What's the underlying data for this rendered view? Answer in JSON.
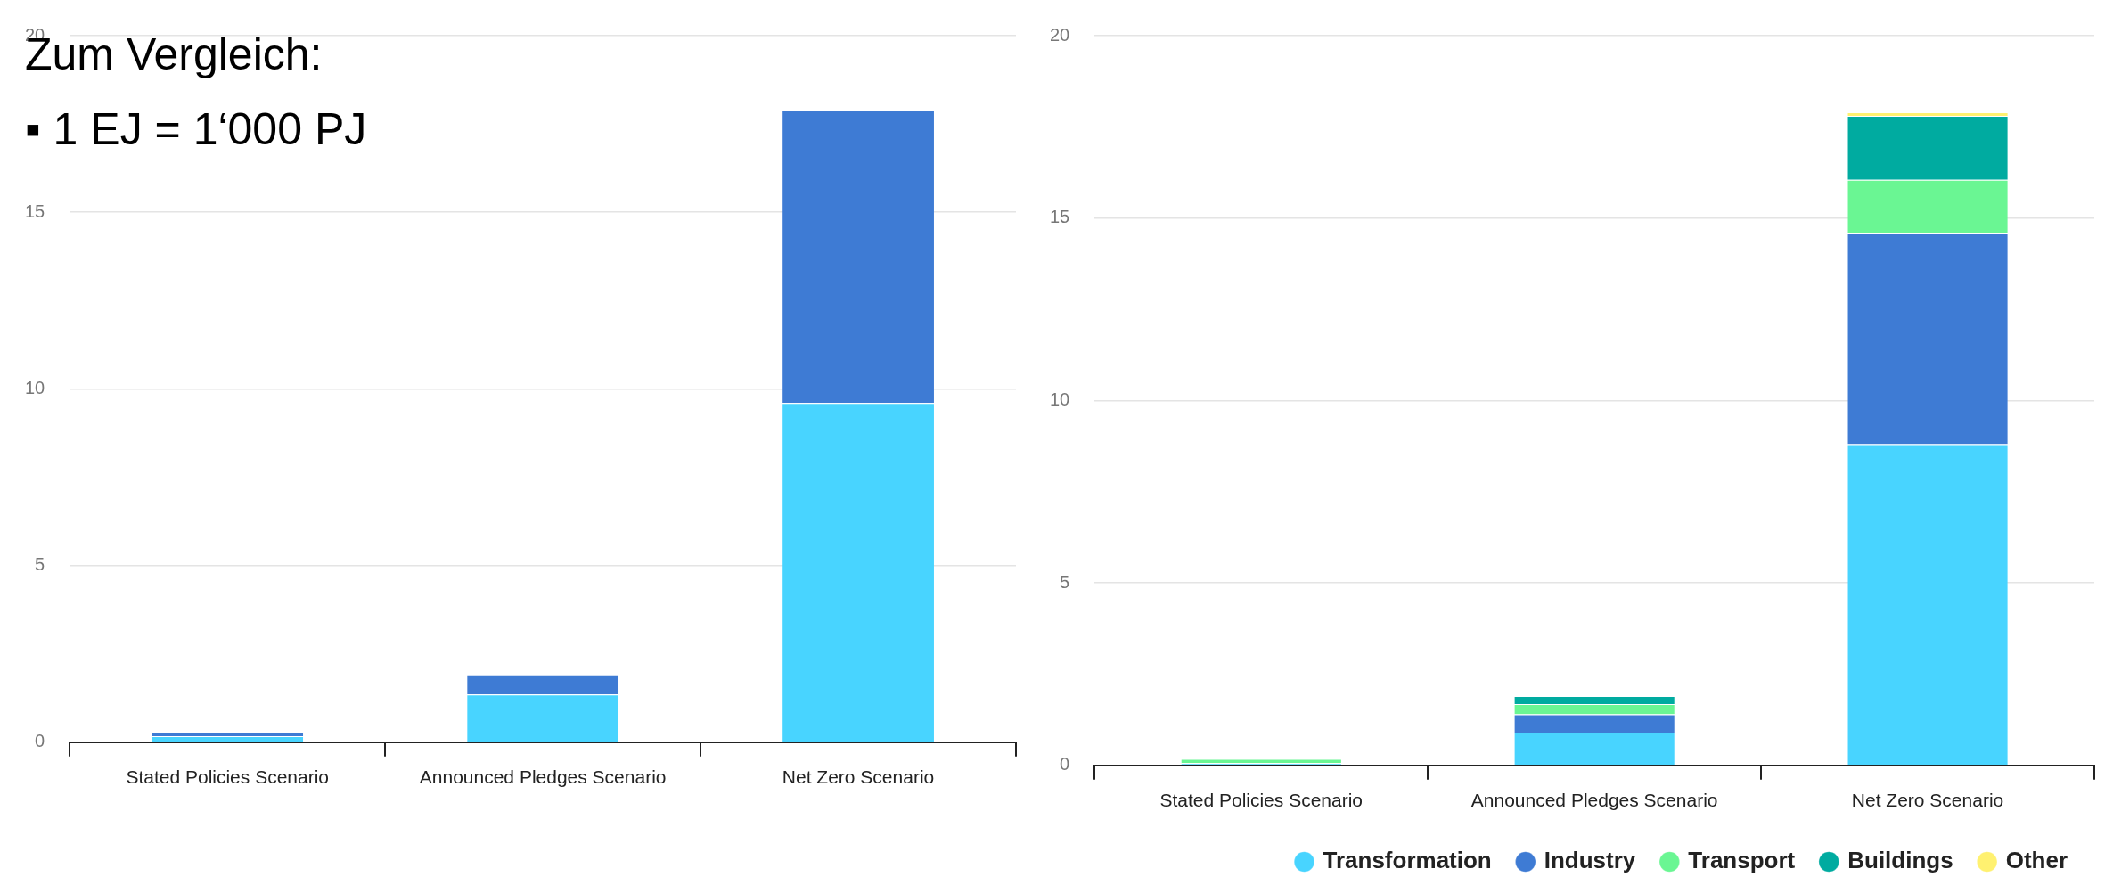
{
  "chart_data": [
    {
      "type": "bar",
      "stacked": true,
      "categories": [
        "Stated Policies Scenario",
        "Announced Pledges Scenario",
        "Net Zero Scenario"
      ],
      "series": [
        {
          "color": "#48d4ff",
          "values": [
            0.17,
            1.35,
            9.6
          ]
        },
        {
          "color": "#3e7bd4",
          "values": [
            0.1,
            0.57,
            8.3
          ]
        }
      ],
      "ylim": [
        0,
        20
      ],
      "yticks": [
        0,
        5,
        10,
        15,
        20
      ],
      "grid": "y",
      "legend": false,
      "annotations": [
        "Zum Vergleich:",
        "▪  1 EJ = 1‘000 PJ"
      ]
    },
    {
      "type": "bar",
      "stacked": true,
      "categories": [
        "Stated Policies Scenario",
        "Announced Pledges Scenario",
        "Net Zero Scenario"
      ],
      "series": [
        {
          "name": "Transformation",
          "color": "#48d4ff",
          "values": [
            0.06,
            0.9,
            8.8
          ]
        },
        {
          "name": "Industry",
          "color": "#3e7bd4",
          "values": [
            0,
            0.5,
            5.8
          ]
        },
        {
          "name": "Transport",
          "color": "#6af693",
          "values": [
            0.12,
            0.28,
            1.45
          ]
        },
        {
          "name": "Buildings",
          "color": "#00aba0",
          "values": [
            0,
            0.22,
            1.75
          ]
        },
        {
          "name": "Other",
          "color": "#fff170",
          "values": [
            0,
            0,
            0.1
          ]
        }
      ],
      "ylim": [
        0,
        20
      ],
      "yticks": [
        0,
        5,
        10,
        15,
        20
      ],
      "grid": "y",
      "legend": "bottom"
    }
  ]
}
